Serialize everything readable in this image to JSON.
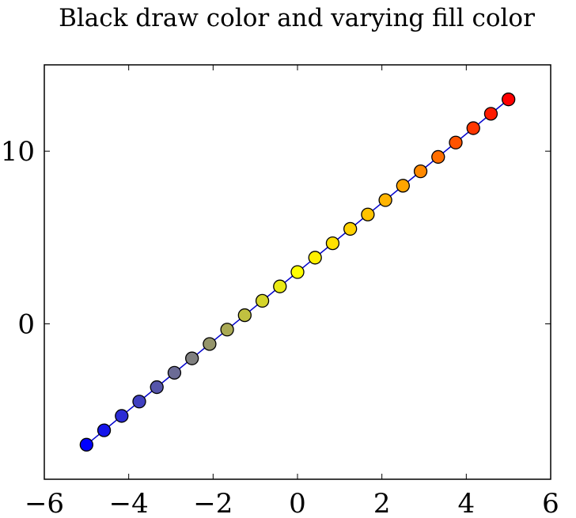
{
  "chart_data": {
    "type": "scatter",
    "title": "Black draw color and varying fill color",
    "xlabel": "",
    "ylabel": "",
    "xlim": [
      -6,
      6
    ],
    "ylim": [
      -9,
      15
    ],
    "x_ticks": [
      -6,
      -4,
      -2,
      0,
      2,
      4,
      6
    ],
    "x_tick_labels": [
      "−6",
      "−4",
      "−2",
      "0",
      "2",
      "4",
      "6"
    ],
    "y_ticks": [
      0,
      10
    ],
    "y_tick_labels": [
      "0",
      "10"
    ],
    "grid": false,
    "legend": "none",
    "line_color": "#0000cc",
    "marker_edge_color": "#000000",
    "colormap": [
      "#0000ff",
      "#808080",
      "#ffff00",
      "#ffa500",
      "#ff0000"
    ],
    "series": [
      {
        "x": [
          -5,
          -4.5833,
          -4.1667,
          -3.75,
          -3.3333,
          -2.9167,
          -2.5,
          -2.0833,
          -1.6667,
          -1.25,
          -0.8333,
          -0.4167,
          0,
          0.4167,
          0.8333,
          1.25,
          1.6667,
          2.0833,
          2.5,
          2.9167,
          3.3333,
          3.75,
          4.1667,
          4.5833,
          5
        ],
        "y": [
          -7,
          -6.1667,
          -5.3333,
          -4.5,
          -3.6667,
          -2.8333,
          -2,
          -1.1667,
          -0.3333,
          0.5,
          1.3333,
          2.1667,
          3,
          3.8333,
          4.6667,
          5.5,
          6.3333,
          7.1667,
          8,
          8.8333,
          9.6667,
          10.5,
          11.3333,
          12.1667,
          13
        ]
      }
    ]
  }
}
